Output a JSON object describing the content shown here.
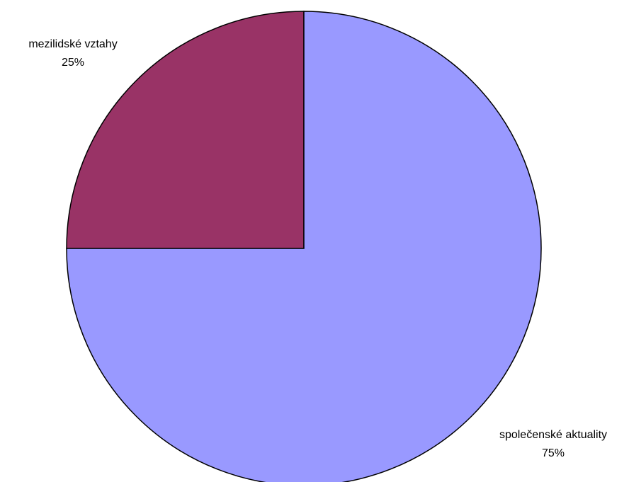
{
  "chart_data": {
    "type": "pie",
    "slices": [
      {
        "label": "mezilidské vztahy",
        "value": 25,
        "percent_label": "25%",
        "color": "#993366"
      },
      {
        "label": "společenské aktuality",
        "value": 75,
        "percent_label": "75%",
        "color": "#9999ff"
      }
    ],
    "start_angle_deg": 0,
    "direction": "counterclockwise"
  }
}
